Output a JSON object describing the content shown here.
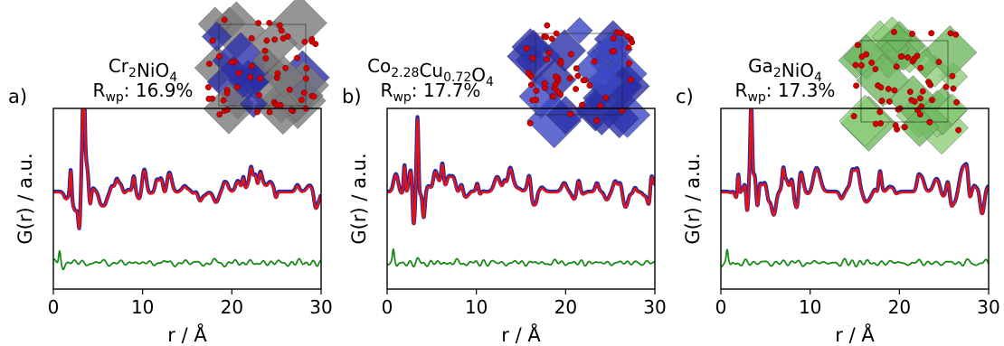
{
  "chart_data": [
    {
      "type": "line",
      "panel_label": "a)",
      "title_formula": [
        {
          "t": "Cr"
        },
        {
          "t": "2",
          "sub": true
        },
        {
          "t": "NiO"
        },
        {
          "t": "4",
          "sub": true
        }
      ],
      "rwp_label": "R",
      "rwp_sub": "wp",
      "rwp_value": ": 16.9%",
      "xlabel": "r / Å",
      "ylabel": "G(r) / a.u.",
      "xlim": [
        0,
        30
      ],
      "xticks": [
        "0",
        "10",
        "20",
        "30"
      ],
      "yticks": "none",
      "structure_inset": {
        "polyhedra_colors": [
          "#7a7a7a",
          "#2b2fa8"
        ],
        "atom_color": "#d40000"
      },
      "series": [
        {
          "color": "#2a2a9a",
          "values": "data"
        },
        {
          "color": "#ee1111",
          "values": "fit"
        },
        {
          "color": "#1a8a1a",
          "values": "difference"
        }
      ]
    },
    {
      "type": "line",
      "panel_label": "b)",
      "title_formula": [
        {
          "t": "Co"
        },
        {
          "t": "2.28",
          "sub": true
        },
        {
          "t": "Cu"
        },
        {
          "t": "0.72",
          "sub": true
        },
        {
          "t": "O"
        },
        {
          "t": "4",
          "sub": true
        }
      ],
      "rwp_label": "R",
      "rwp_sub": "wp",
      "rwp_value": ": 17.7%",
      "xlabel": "r / Å",
      "ylabel": "G(r) / a.u.",
      "xlim": [
        0,
        30
      ],
      "xticks": [
        "0",
        "10",
        "20",
        "30"
      ],
      "yticks": "none",
      "structure_inset": {
        "polyhedra_colors": [
          "#3b47c4",
          "#2b2fa8"
        ],
        "atom_color": "#d40000"
      },
      "series": [
        {
          "color": "#2a2a9a",
          "values": "data"
        },
        {
          "color": "#ee1111",
          "values": "fit"
        },
        {
          "color": "#1a8a1a",
          "values": "difference"
        }
      ]
    },
    {
      "type": "line",
      "panel_label": "c)",
      "title_formula": [
        {
          "t": "Ga"
        },
        {
          "t": "2",
          "sub": true
        },
        {
          "t": "NiO"
        },
        {
          "t": "4",
          "sub": true
        }
      ],
      "rwp_label": "R",
      "rwp_sub": "wp",
      "rwp_value": ": 17.3%",
      "xlabel": "r / Å",
      "ylabel": "G(r) / a.u.",
      "xlim": [
        0,
        30
      ],
      "xticks": [
        "0",
        "10",
        "20",
        "30"
      ],
      "yticks": "none",
      "structure_inset": {
        "polyhedra_colors": [
          "#8fce7a",
          "#6fb860"
        ],
        "atom_color": "#d40000"
      },
      "series": [
        {
          "color": "#2a2a9a",
          "values": "data"
        },
        {
          "color": "#ee1111",
          "values": "fit"
        },
        {
          "color": "#1a8a1a",
          "values": "difference"
        }
      ]
    }
  ]
}
